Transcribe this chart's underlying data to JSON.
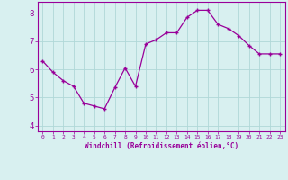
{
  "x": [
    0,
    1,
    2,
    3,
    4,
    5,
    6,
    7,
    8,
    9,
    10,
    11,
    12,
    13,
    14,
    15,
    16,
    17,
    18,
    19,
    20,
    21,
    22,
    23
  ],
  "y": [
    6.3,
    5.9,
    5.6,
    5.4,
    4.8,
    4.7,
    4.6,
    5.35,
    6.05,
    5.4,
    6.9,
    7.05,
    7.3,
    7.3,
    7.85,
    8.1,
    8.1,
    7.6,
    7.45,
    7.2,
    6.85,
    6.55,
    6.55,
    6.55
  ],
  "line_color": "#990099",
  "marker": "+",
  "marker_size": 3,
  "bg_color": "#d8f0f0",
  "grid_color": "#b0d8d8",
  "xlabel": "Windchill (Refroidissement éolien,°C)",
  "xlim": [
    -0.5,
    23.5
  ],
  "ylim": [
    3.8,
    8.4
  ],
  "yticks": [
    4,
    5,
    6,
    7,
    8
  ],
  "xticks": [
    0,
    1,
    2,
    3,
    4,
    5,
    6,
    7,
    8,
    9,
    10,
    11,
    12,
    13,
    14,
    15,
    16,
    17,
    18,
    19,
    20,
    21,
    22,
    23
  ],
  "tick_color": "#990099",
  "label_color": "#990099",
  "spine_color": "#990099",
  "axis_bg": "#d8f0f0"
}
